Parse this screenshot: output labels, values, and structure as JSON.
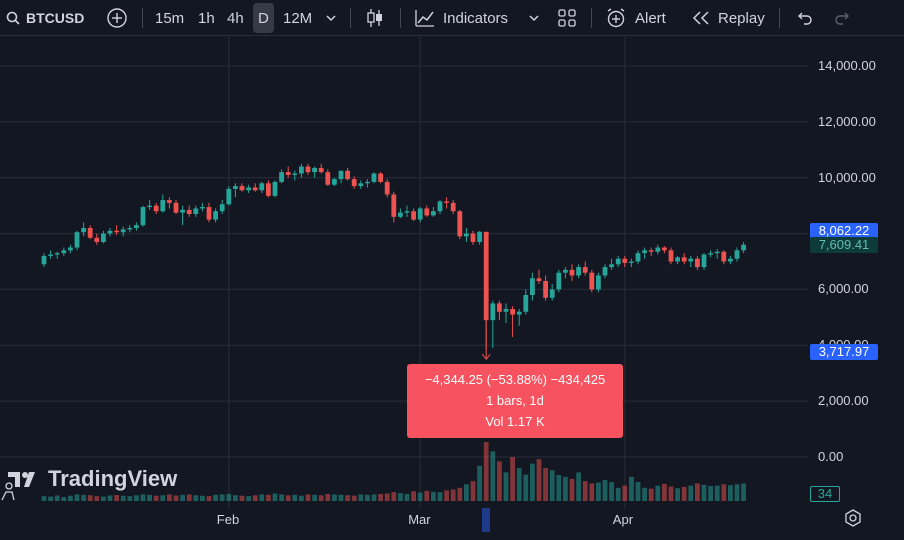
{
  "toolbar": {
    "symbol": "BTCUSD",
    "timeframes": [
      "15m",
      "1h",
      "4h",
      "D",
      "12M"
    ],
    "active_timeframe": "D",
    "indicators_label": "Indicators",
    "alert_label": "Alert",
    "replay_label": "Replay"
  },
  "brand": {
    "name": "TradingView"
  },
  "colors": {
    "up": "#26a69a",
    "down": "#ef5350",
    "background": "#131722",
    "grid": "#2a2e39",
    "highlight": "#2962ff",
    "measure": "#f7525f"
  },
  "measure": {
    "line1": "−4,344.25 (−53.88%) −434,425",
    "line2": "1 bars, 1d",
    "line3": "Vol 1.17 K"
  },
  "price_badges": {
    "top": "8,062.22",
    "mid": "7,609.41",
    "bottom": "3,717.97",
    "volume": "34"
  },
  "chart_data": {
    "type": "candlestick",
    "symbol": "BTCUSD",
    "interval": "1D",
    "y_ticks": [
      "14,000.00",
      "12,000.00",
      "10,000.00",
      "6,000.00",
      "4,000.00",
      "2,000.00",
      "0.00"
    ],
    "ylim": [
      -1500,
      15000
    ],
    "x_ticks": [
      {
        "label": "Feb",
        "index": 28
      },
      {
        "label": "Mar",
        "index": 57
      },
      {
        "label": "Apr",
        "index": 88
      }
    ],
    "grid": true,
    "candles": [
      [
        6900,
        7300,
        6800,
        7200
      ],
      [
        7200,
        7400,
        7100,
        7250
      ],
      [
        7250,
        7350,
        7100,
        7300
      ],
      [
        7300,
        7500,
        7200,
        7400
      ],
      [
        7400,
        7600,
        7300,
        7500
      ],
      [
        7500,
        8100,
        7400,
        8050
      ],
      [
        8050,
        8400,
        7900,
        8200
      ],
      [
        8200,
        8300,
        7800,
        7850
      ],
      [
        7850,
        8000,
        7600,
        7700
      ],
      [
        7700,
        8100,
        7650,
        8000
      ],
      [
        8000,
        8200,
        7900,
        8100
      ],
      [
        8100,
        8300,
        7950,
        8050
      ],
      [
        8050,
        8250,
        7900,
        8150
      ],
      [
        8150,
        8300,
        8050,
        8200
      ],
      [
        8200,
        8400,
        8100,
        8300
      ],
      [
        8300,
        9000,
        8250,
        8950
      ],
      [
        8950,
        9200,
        8850,
        9000
      ],
      [
        9000,
        9100,
        8700,
        8800
      ],
      [
        8800,
        9400,
        8750,
        9200
      ],
      [
        9200,
        9300,
        8900,
        9100
      ],
      [
        9100,
        9200,
        8700,
        8750
      ],
      [
        8750,
        9000,
        8300,
        8850
      ],
      [
        8850,
        9000,
        8600,
        8700
      ],
      [
        8700,
        9000,
        8600,
        8900
      ],
      [
        8900,
        9100,
        8800,
        8950
      ],
      [
        8950,
        9100,
        8400,
        8500
      ],
      [
        8500,
        8900,
        8400,
        8800
      ],
      [
        8800,
        9200,
        8700,
        9050
      ],
      [
        9050,
        9700,
        9000,
        9600
      ],
      [
        9600,
        9800,
        9300,
        9700
      ],
      [
        9700,
        9800,
        9500,
        9550
      ],
      [
        9550,
        9750,
        9450,
        9650
      ],
      [
        9650,
        9800,
        9500,
        9550
      ],
      [
        9550,
        9850,
        9450,
        9800
      ],
      [
        9800,
        9900,
        9300,
        9350
      ],
      [
        9350,
        9900,
        9300,
        9850
      ],
      [
        9850,
        10300,
        9800,
        10200
      ],
      [
        10200,
        10400,
        10000,
        10100
      ],
      [
        10100,
        10250,
        9900,
        10150
      ],
      [
        10150,
        10500,
        10000,
        10400
      ],
      [
        10400,
        10500,
        10100,
        10200
      ],
      [
        10200,
        10400,
        10000,
        10350
      ],
      [
        10350,
        10500,
        10150,
        10200
      ],
      [
        10200,
        10300,
        9700,
        9750
      ],
      [
        9750,
        10000,
        9700,
        9950
      ],
      [
        9950,
        10200,
        9800,
        10250
      ],
      [
        10250,
        10350,
        9900,
        9950
      ],
      [
        9950,
        10050,
        9600,
        9700
      ],
      [
        9700,
        9900,
        9600,
        9800
      ],
      [
        9800,
        9950,
        9650,
        9850
      ],
      [
        9850,
        10200,
        9800,
        10150
      ],
      [
        10150,
        10200,
        9800,
        9850
      ],
      [
        9850,
        9950,
        9300,
        9400
      ],
      [
        9400,
        9500,
        8400,
        8600
      ],
      [
        8600,
        8900,
        8550,
        8750
      ],
      [
        8750,
        9000,
        8600,
        8800
      ],
      [
        8800,
        8900,
        8450,
        8500
      ],
      [
        8500,
        8950,
        8400,
        8900
      ],
      [
        8900,
        9000,
        8600,
        8650
      ],
      [
        8650,
        8950,
        8600,
        8800
      ],
      [
        8800,
        9200,
        8700,
        9150
      ],
      [
        9150,
        9300,
        8900,
        9100
      ],
      [
        9100,
        9200,
        8700,
        8800
      ],
      [
        8800,
        8850,
        7800,
        7900
      ],
      [
        7900,
        8200,
        7700,
        8000
      ],
      [
        8000,
        8100,
        7600,
        7700
      ],
      [
        7700,
        8100,
        7600,
        8062
      ],
      [
        8062,
        8062,
        3850,
        4900
      ],
      [
        4900,
        5600,
        3900,
        5500
      ],
      [
        5500,
        5600,
        4900,
        5200
      ],
      [
        5200,
        5500,
        4800,
        5300
      ],
      [
        5300,
        5400,
        4300,
        5100
      ],
      [
        5100,
        5300,
        4700,
        5200
      ],
      [
        5200,
        6000,
        5100,
        5800
      ],
      [
        5800,
        6600,
        5600,
        6400
      ],
      [
        6400,
        6700,
        6200,
        6300
      ],
      [
        6300,
        6500,
        5600,
        5700
      ],
      [
        5700,
        6200,
        5600,
        6000
      ],
      [
        6000,
        6700,
        5900,
        6600
      ],
      [
        6600,
        6800,
        6400,
        6700
      ],
      [
        6700,
        6900,
        6300,
        6500
      ],
      [
        6500,
        6900,
        6400,
        6800
      ],
      [
        6800,
        7000,
        6500,
        6600
      ],
      [
        6600,
        6700,
        5900,
        6000
      ],
      [
        6000,
        6600,
        5900,
        6500
      ],
      [
        6500,
        6900,
        6400,
        6800
      ],
      [
        6800,
        7100,
        6700,
        6900
      ],
      [
        6900,
        7200,
        6800,
        7100
      ],
      [
        7100,
        7200,
        6800,
        6950
      ],
      [
        6950,
        7100,
        6800,
        7000
      ],
      [
        7000,
        7400,
        6900,
        7300
      ],
      [
        7300,
        7500,
        7100,
        7400
      ],
      [
        7400,
        7500,
        7200,
        7350
      ],
      [
        7350,
        7600,
        7250,
        7500
      ],
      [
        7500,
        7550,
        7300,
        7400
      ],
      [
        7400,
        7500,
        6900,
        7000
      ],
      [
        7000,
        7200,
        6900,
        7150
      ],
      [
        7150,
        7300,
        6900,
        7000
      ],
      [
        7000,
        7200,
        6800,
        7100
      ],
      [
        7100,
        7200,
        6700,
        6800
      ],
      [
        6800,
        7300,
        6700,
        7250
      ],
      [
        7250,
        7400,
        7150,
        7300
      ],
      [
        7300,
        7450,
        7100,
        7350
      ],
      [
        7350,
        7400,
        6900,
        7000
      ],
      [
        7000,
        7200,
        6900,
        7100
      ],
      [
        7100,
        7500,
        7000,
        7400
      ],
      [
        7400,
        7700,
        7300,
        7600
      ]
    ],
    "volumes": [
      22,
      20,
      25,
      18,
      24,
      30,
      28,
      26,
      22,
      20,
      25,
      27,
      24,
      22,
      26,
      30,
      28,
      24,
      26,
      30,
      25,
      28,
      30,
      26,
      24,
      22,
      28,
      30,
      32,
      26,
      24,
      22,
      26,
      30,
      28,
      34,
      30,
      26,
      28,
      24,
      30,
      28,
      26,
      32,
      30,
      28,
      26,
      24,
      30,
      28,
      30,
      32,
      34,
      40,
      36,
      32,
      44,
      38,
      46,
      42,
      40,
      48,
      52,
      60,
      76,
      90,
      160,
      268,
      226,
      180,
      130,
      200,
      150,
      120,
      170,
      190,
      150,
      140,
      118,
      110,
      100,
      130,
      90,
      80,
      84,
      96,
      86,
      60,
      70,
      110,
      86,
      60,
      56,
      70,
      78,
      66,
      58,
      64,
      70,
      80,
      74,
      68,
      70,
      76,
      72,
      76,
      80
    ],
    "measure": {
      "change": -4344.25,
      "change_pct": -53.88,
      "ticks": -434425,
      "bars": 1,
      "interval": "1d",
      "volume": "1.17 K",
      "from": 8062.22,
      "to": 3717.97
    },
    "last_price": 7609.41,
    "volume_last": 34
  }
}
